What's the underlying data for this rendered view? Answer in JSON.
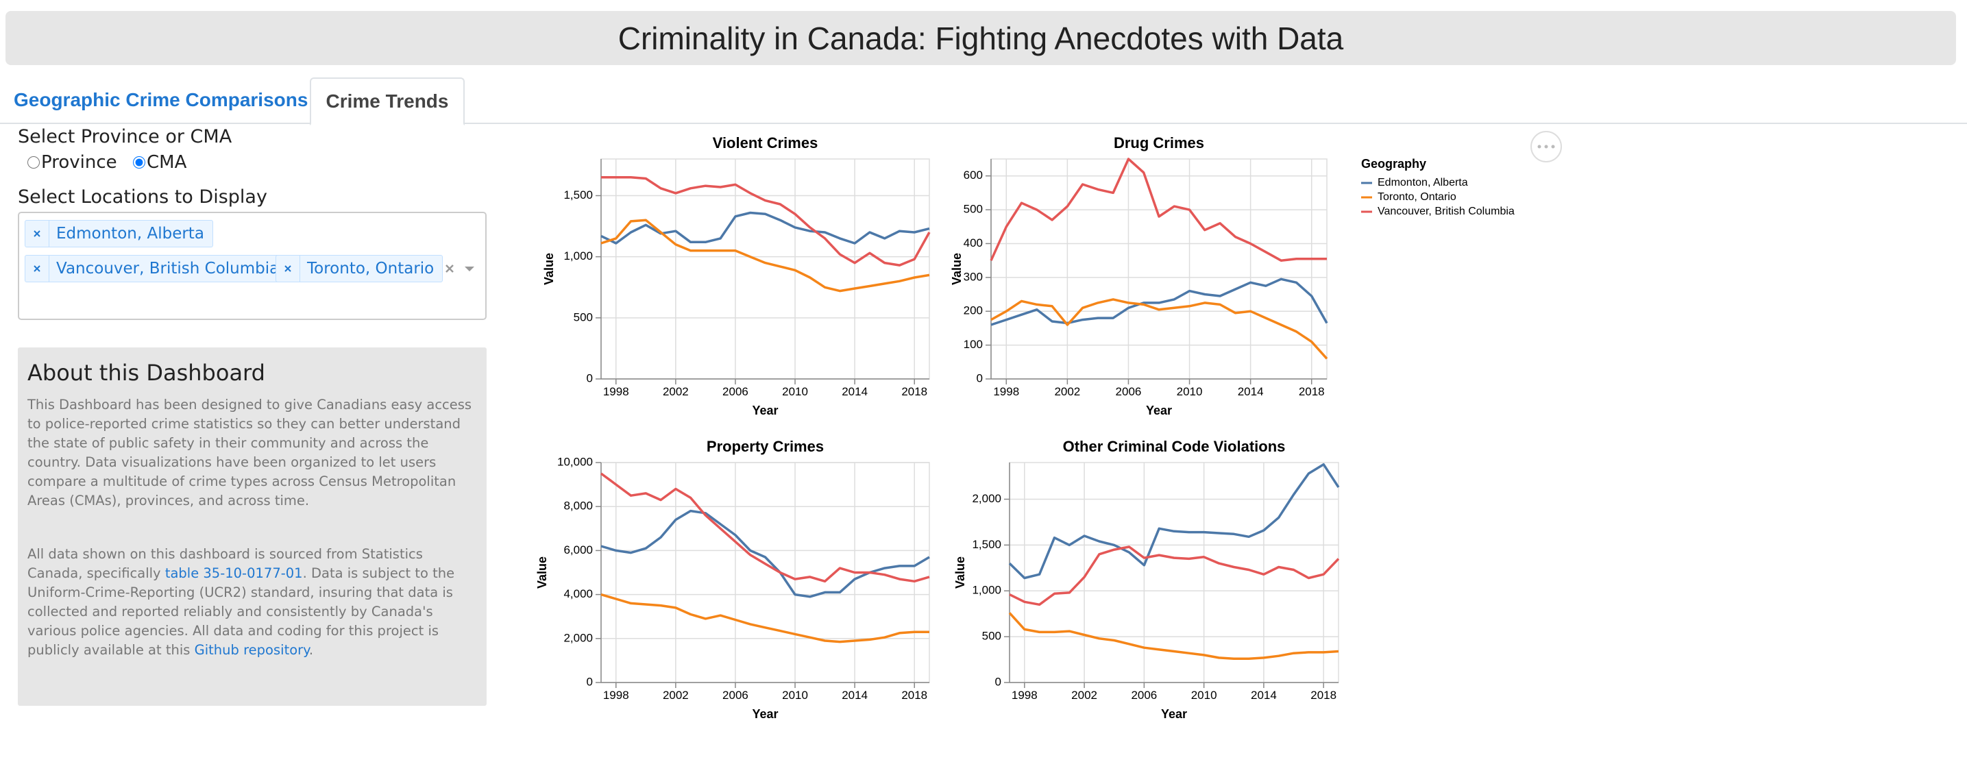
{
  "header": {
    "title": "Criminality in Canada: Fighting Anecdotes with Data"
  },
  "tabs": [
    "Geographic Crime Comparisons",
    "Crime Trends"
  ],
  "controls": {
    "province_label": "Select Province or CMA",
    "options": [
      "Province",
      "CMA"
    ],
    "locations_label": "Select Locations to Display",
    "selected": [
      "Edmonton, Alberta",
      "Vancouver, British Columbia",
      "Toronto, Ontario"
    ]
  },
  "about": {
    "title": "About this Dashboard",
    "paragraph1": "This Dashboard has been designed to give Canadians easy access to police-reported crime statistics so they can better understand the state of public safety in their community and across the country. Data visualizations have been organized to let users compare a multitude of crime types across Census Metropolitan Areas (CMAs), provinces, and across time.",
    "paragraph2": [
      "All data shown on this dashboard is sourced from Statistics Canada, specifically ",
      "table 35-10-0177-01",
      ". Data is subject to the Uniform-Crime-Reporting (UCR2) standard, insuring that data is collected and reported reliably and consistently by Canada's various police agencies. All data and coding for this project is publicly available at this ",
      "Github repository",
      "."
    ]
  },
  "legend": {
    "title": "Geography"
  },
  "chart_data": [
    {
      "type": "line",
      "title": "Violent Crimes",
      "x_label": "Year",
      "y_label": "Value",
      "grid": true,
      "x": [
        1997,
        1998,
        1999,
        2000,
        2001,
        2002,
        2003,
        2004,
        2005,
        2006,
        2007,
        2008,
        2009,
        2010,
        2011,
        2012,
        2013,
        2014,
        2015,
        2016,
        2017,
        2018,
        2019
      ],
      "xlim": [
        1997,
        2019
      ],
      "xticks": [
        1998,
        2002,
        2006,
        2010,
        2014,
        2018
      ],
      "ylim": [
        0,
        1800
      ],
      "yticks": [
        0,
        500,
        {
          "value": 1000,
          "label": "1,000"
        },
        {
          "value": 1500,
          "label": "1,500"
        }
      ],
      "series": [
        {
          "name": "Edmonton, Alberta",
          "color": "#4c78a8",
          "values": [
            1170,
            1110,
            1200,
            1260,
            1190,
            1210,
            1120,
            1120,
            1150,
            1330,
            1360,
            1350,
            1300,
            1240,
            1210,
            1200,
            1150,
            1110,
            1200,
            1150,
            1210,
            1200,
            1230
          ]
        },
        {
          "name": "Toronto, Ontario",
          "color": "#f58518",
          "values": [
            1110,
            1150,
            1290,
            1300,
            1200,
            1100,
            1050,
            1050,
            1050,
            1050,
            1000,
            950,
            920,
            890,
            830,
            750,
            720,
            740,
            760,
            780,
            800,
            830,
            850
          ]
        },
        {
          "name": "Vancouver, British Columbia",
          "color": "#e45756",
          "values": [
            1650,
            1650,
            1650,
            1640,
            1560,
            1520,
            1560,
            1580,
            1570,
            1590,
            1520,
            1460,
            1430,
            1350,
            1240,
            1150,
            1020,
            950,
            1030,
            950,
            930,
            980,
            1200
          ]
        }
      ]
    },
    {
      "type": "line",
      "title": "Drug Crimes",
      "x_label": "Year",
      "y_label": "Value",
      "grid": true,
      "x": [
        1997,
        1998,
        1999,
        2000,
        2001,
        2002,
        2003,
        2004,
        2005,
        2006,
        2007,
        2008,
        2009,
        2010,
        2011,
        2012,
        2013,
        2014,
        2015,
        2016,
        2017,
        2018,
        2019
      ],
      "xlim": [
        1997,
        2019
      ],
      "xticks": [
        1998,
        2002,
        2006,
        2010,
        2014,
        2018
      ],
      "ylim": [
        0,
        650
      ],
      "yticks": [
        0,
        100,
        200,
        300,
        400,
        500,
        600
      ],
      "series": [
        {
          "name": "Edmonton, Alberta",
          "color": "#4c78a8",
          "values": [
            160,
            175,
            190,
            205,
            170,
            165,
            175,
            180,
            180,
            210,
            225,
            225,
            235,
            260,
            250,
            245,
            265,
            285,
            275,
            295,
            285,
            245,
            165
          ]
        },
        {
          "name": "Toronto, Ontario",
          "color": "#f58518",
          "values": [
            175,
            200,
            230,
            220,
            215,
            160,
            210,
            225,
            235,
            225,
            220,
            205,
            210,
            215,
            225,
            220,
            195,
            200,
            180,
            160,
            140,
            110,
            60
          ]
        },
        {
          "name": "Vancouver, British Columbia",
          "color": "#e45756",
          "values": [
            350,
            450,
            520,
            500,
            470,
            510,
            575,
            560,
            550,
            650,
            610,
            480,
            510,
            500,
            440,
            460,
            420,
            400,
            375,
            350,
            355,
            355,
            355
          ]
        }
      ]
    },
    {
      "type": "line",
      "title": "Property Crimes",
      "x_label": "Year",
      "y_label": "Value",
      "grid": true,
      "x": [
        1997,
        1998,
        1999,
        2000,
        2001,
        2002,
        2003,
        2004,
        2005,
        2006,
        2007,
        2008,
        2009,
        2010,
        2011,
        2012,
        2013,
        2014,
        2015,
        2016,
        2017,
        2018,
        2019
      ],
      "xlim": [
        1997,
        2019
      ],
      "xticks": [
        1998,
        2002,
        2006,
        2010,
        2014,
        2018
      ],
      "ylim": [
        0,
        10000
      ],
      "yticks": [
        0,
        {
          "value": 2000,
          "label": "2,000"
        },
        {
          "value": 4000,
          "label": "4,000"
        },
        {
          "value": 6000,
          "label": "6,000"
        },
        {
          "value": 8000,
          "label": "8,000"
        },
        {
          "value": 10000,
          "label": "10,000"
        }
      ],
      "series": [
        {
          "name": "Edmonton, Alberta",
          "color": "#4c78a8",
          "values": [
            6200,
            6000,
            5900,
            6100,
            6600,
            7400,
            7800,
            7700,
            7200,
            6700,
            6000,
            5700,
            5000,
            4000,
            3900,
            4100,
            4100,
            4700,
            5000,
            5200,
            5300,
            5300,
            5700
          ]
        },
        {
          "name": "Toronto, Ontario",
          "color": "#f58518",
          "values": [
            4000,
            3800,
            3600,
            3550,
            3500,
            3400,
            3100,
            2900,
            3050,
            2850,
            2650,
            2500,
            2350,
            2200,
            2050,
            1900,
            1850,
            1900,
            1950,
            2050,
            2250,
            2300,
            2300
          ]
        },
        {
          "name": "Vancouver, British Columbia",
          "color": "#e45756",
          "values": [
            9500,
            9000,
            8500,
            8600,
            8300,
            8800,
            8400,
            7600,
            7000,
            6400,
            5800,
            5400,
            5000,
            4700,
            4800,
            4600,
            5200,
            5000,
            5000,
            4900,
            4700,
            4600,
            4800
          ]
        }
      ]
    },
    {
      "type": "line",
      "title": "Other Criminal Code Violations",
      "x_label": "Year",
      "y_label": "Value",
      "grid": true,
      "x": [
        1997,
        1998,
        1999,
        2000,
        2001,
        2002,
        2003,
        2004,
        2005,
        2006,
        2007,
        2008,
        2009,
        2010,
        2011,
        2012,
        2013,
        2014,
        2015,
        2016,
        2017,
        2018,
        2019
      ],
      "xlim": [
        1997,
        2019
      ],
      "xticks": [
        1998,
        2002,
        2006,
        2010,
        2014,
        2018
      ],
      "ylim": [
        0,
        2400
      ],
      "yticks": [
        0,
        500,
        {
          "value": 1000,
          "label": "1,000"
        },
        {
          "value": 1500,
          "label": "1,500"
        },
        {
          "value": 2000,
          "label": "2,000"
        }
      ],
      "series": [
        {
          "name": "Edmonton, Alberta",
          "color": "#4c78a8",
          "values": [
            1300,
            1140,
            1180,
            1580,
            1500,
            1600,
            1540,
            1500,
            1420,
            1280,
            1680,
            1650,
            1640,
            1640,
            1630,
            1620,
            1590,
            1660,
            1800,
            2050,
            2280,
            2380,
            2130
          ]
        },
        {
          "name": "Toronto, Ontario",
          "color": "#f58518",
          "values": [
            760,
            580,
            550,
            550,
            560,
            520,
            480,
            460,
            420,
            380,
            360,
            340,
            320,
            300,
            270,
            260,
            260,
            270,
            290,
            320,
            330,
            330,
            340
          ]
        },
        {
          "name": "Vancouver, British Columbia",
          "color": "#e45756",
          "values": [
            960,
            880,
            850,
            970,
            980,
            1150,
            1400,
            1450,
            1480,
            1360,
            1390,
            1360,
            1350,
            1370,
            1300,
            1260,
            1230,
            1180,
            1260,
            1230,
            1140,
            1180,
            1350
          ]
        }
      ]
    }
  ]
}
